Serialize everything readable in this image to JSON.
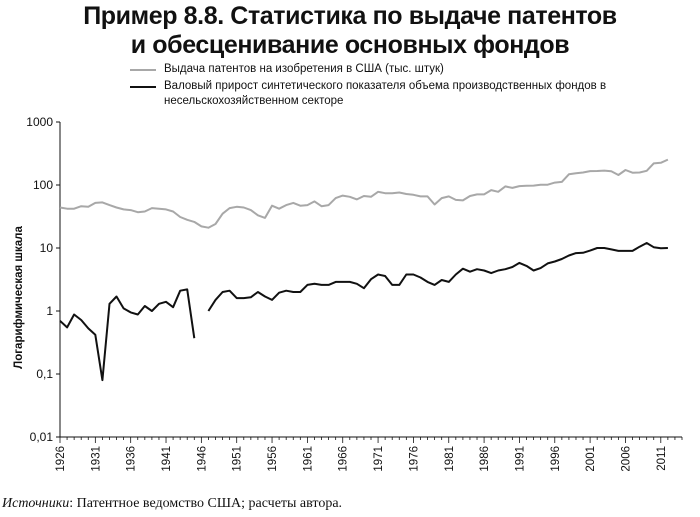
{
  "title": {
    "line1": "Пример 8.8. Статистика по выдаче патентов",
    "line2": "и обесценивание основных фондов"
  },
  "source": {
    "label": "Источники",
    "text": ": Патентное ведомство США; расчеты автора."
  },
  "chart_data": {
    "type": "line",
    "ylabel": "Логарифмическая шкала",
    "xlabel": "",
    "yscale": "log",
    "ylim": [
      0.01,
      1000
    ],
    "xlim": [
      1926,
      2014
    ],
    "yticks": [
      0.01,
      0.1,
      1,
      10,
      100,
      1000
    ],
    "ytick_labels": [
      "0,01",
      "0,1",
      "1",
      "10",
      "100",
      "1000"
    ],
    "xticks": [
      1926,
      1931,
      1936,
      1941,
      1946,
      1951,
      1956,
      1961,
      1966,
      1971,
      1976,
      1981,
      1986,
      1991,
      1996,
      2001,
      2006,
      2011
    ],
    "grid": false,
    "legend_placement": "top-left",
    "series": [
      {
        "name": "Выдача патентов на изобретения в США (тыс. штук)",
        "color": "#a8a8a8",
        "points": [
          [
            1926,
            44
          ],
          [
            1927,
            42
          ],
          [
            1928,
            42
          ],
          [
            1929,
            46
          ],
          [
            1930,
            45
          ],
          [
            1931,
            52
          ],
          [
            1932,
            53
          ],
          [
            1933,
            48
          ],
          [
            1934,
            44
          ],
          [
            1935,
            41
          ],
          [
            1936,
            40
          ],
          [
            1937,
            37
          ],
          [
            1938,
            38
          ],
          [
            1939,
            43
          ],
          [
            1940,
            42
          ],
          [
            1941,
            41
          ],
          [
            1942,
            38
          ],
          [
            1943,
            31
          ],
          [
            1944,
            28
          ],
          [
            1945,
            26
          ],
          [
            1946,
            22
          ],
          [
            1947,
            21
          ],
          [
            1948,
            24
          ],
          [
            1949,
            35
          ],
          [
            1950,
            43
          ],
          [
            1951,
            45
          ],
          [
            1952,
            44
          ],
          [
            1953,
            40
          ],
          [
            1954,
            33
          ],
          [
            1955,
            30
          ],
          [
            1956,
            47
          ],
          [
            1957,
            42
          ],
          [
            1958,
            48
          ],
          [
            1959,
            52
          ],
          [
            1960,
            47
          ],
          [
            1961,
            48
          ],
          [
            1962,
            55
          ],
          [
            1963,
            46
          ],
          [
            1964,
            48
          ],
          [
            1965,
            62
          ],
          [
            1966,
            68
          ],
          [
            1967,
            65
          ],
          [
            1968,
            59
          ],
          [
            1969,
            67
          ],
          [
            1970,
            65
          ],
          [
            1971,
            78
          ],
          [
            1972,
            74
          ],
          [
            1973,
            74
          ],
          [
            1974,
            76
          ],
          [
            1975,
            72
          ],
          [
            1976,
            70
          ],
          [
            1977,
            66
          ],
          [
            1978,
            66
          ],
          [
            1979,
            49
          ],
          [
            1980,
            62
          ],
          [
            1981,
            66
          ],
          [
            1982,
            58
          ],
          [
            1983,
            57
          ],
          [
            1984,
            67
          ],
          [
            1985,
            71
          ],
          [
            1986,
            71
          ],
          [
            1987,
            83
          ],
          [
            1988,
            78
          ],
          [
            1989,
            95
          ],
          [
            1990,
            90
          ],
          [
            1991,
            96
          ],
          [
            1992,
            97
          ],
          [
            1993,
            98
          ],
          [
            1994,
            101
          ],
          [
            1995,
            101
          ],
          [
            1996,
            109
          ],
          [
            1997,
            112
          ],
          [
            1998,
            148
          ],
          [
            1999,
            154
          ],
          [
            2000,
            158
          ],
          [
            2001,
            166
          ],
          [
            2002,
            167
          ],
          [
            2003,
            169
          ],
          [
            2004,
            165
          ],
          [
            2005,
            144
          ],
          [
            2006,
            173
          ],
          [
            2007,
            157
          ],
          [
            2008,
            158
          ],
          [
            2009,
            168
          ],
          [
            2010,
            220
          ],
          [
            2011,
            225
          ],
          [
            2012,
            253
          ]
        ]
      },
      {
        "name": "Валовый прирост синтетического показателя объема производственных фондов в несельскохозяйственном секторе",
        "color": "#111111",
        "segments": [
          [
            [
              1926,
              0.7
            ],
            [
              1927,
              0.55
            ],
            [
              1928,
              0.88
            ],
            [
              1929,
              0.72
            ],
            [
              1930,
              0.53
            ],
            [
              1931,
              0.42
            ],
            [
              1932,
              0.08
            ],
            [
              1933,
              1.3
            ],
            [
              1934,
              1.7
            ],
            [
              1935,
              1.1
            ],
            [
              1936,
              0.95
            ],
            [
              1937,
              0.88
            ],
            [
              1938,
              1.2
            ],
            [
              1939,
              1.0
            ],
            [
              1940,
              1.3
            ],
            [
              1941,
              1.4
            ],
            [
              1942,
              1.15
            ],
            [
              1943,
              2.1
            ],
            [
              1944,
              2.2
            ],
            [
              1945,
              0.37
            ]
          ],
          [
            [
              1947,
              1.0
            ],
            [
              1948,
              1.5
            ],
            [
              1949,
              2.0
            ],
            [
              1950,
              2.1
            ],
            [
              1951,
              1.6
            ],
            [
              1952,
              1.6
            ],
            [
              1953,
              1.65
            ],
            [
              1954,
              2.0
            ],
            [
              1955,
              1.7
            ],
            [
              1956,
              1.5
            ],
            [
              1957,
              1.95
            ],
            [
              1958,
              2.1
            ],
            [
              1959,
              2.0
            ],
            [
              1960,
              2.0
            ],
            [
              1961,
              2.6
            ],
            [
              1962,
              2.7
            ],
            [
              1963,
              2.6
            ],
            [
              1964,
              2.6
            ],
            [
              1965,
              2.9
            ],
            [
              1966,
              2.9
            ],
            [
              1967,
              2.9
            ],
            [
              1968,
              2.7
            ],
            [
              1969,
              2.3
            ],
            [
              1970,
              3.2
            ],
            [
              1971,
              3.8
            ],
            [
              1972,
              3.6
            ],
            [
              1973,
              2.6
            ],
            [
              1974,
              2.6
            ],
            [
              1975,
              3.8
            ],
            [
              1976,
              3.8
            ],
            [
              1977,
              3.4
            ],
            [
              1978,
              2.9
            ],
            [
              1979,
              2.6
            ],
            [
              1980,
              3.1
            ],
            [
              1981,
              2.9
            ],
            [
              1982,
              3.8
            ],
            [
              1983,
              4.7
            ],
            [
              1984,
              4.2
            ],
            [
              1985,
              4.6
            ],
            [
              1986,
              4.4
            ],
            [
              1987,
              4.0
            ],
            [
              1988,
              4.4
            ],
            [
              1989,
              4.6
            ],
            [
              1990,
              5.0
            ],
            [
              1991,
              5.8
            ],
            [
              1992,
              5.2
            ],
            [
              1993,
              4.4
            ],
            [
              1994,
              4.8
            ],
            [
              1995,
              5.7
            ],
            [
              1996,
              6.1
            ],
            [
              1997,
              6.7
            ],
            [
              1998,
              7.6
            ],
            [
              1999,
              8.3
            ],
            [
              2000,
              8.4
            ],
            [
              2001,
              9.1
            ],
            [
              2002,
              10.0
            ],
            [
              2003,
              10.0
            ],
            [
              2004,
              9.5
            ],
            [
              2005,
              9.0
            ],
            [
              2006,
              9.0
            ],
            [
              2007,
              9.0
            ],
            [
              2008,
              10.5
            ],
            [
              2009,
              12.0
            ],
            [
              2010,
              10.3
            ],
            [
              2011,
              9.9
            ],
            [
              2012,
              10.0
            ]
          ]
        ]
      }
    ]
  }
}
